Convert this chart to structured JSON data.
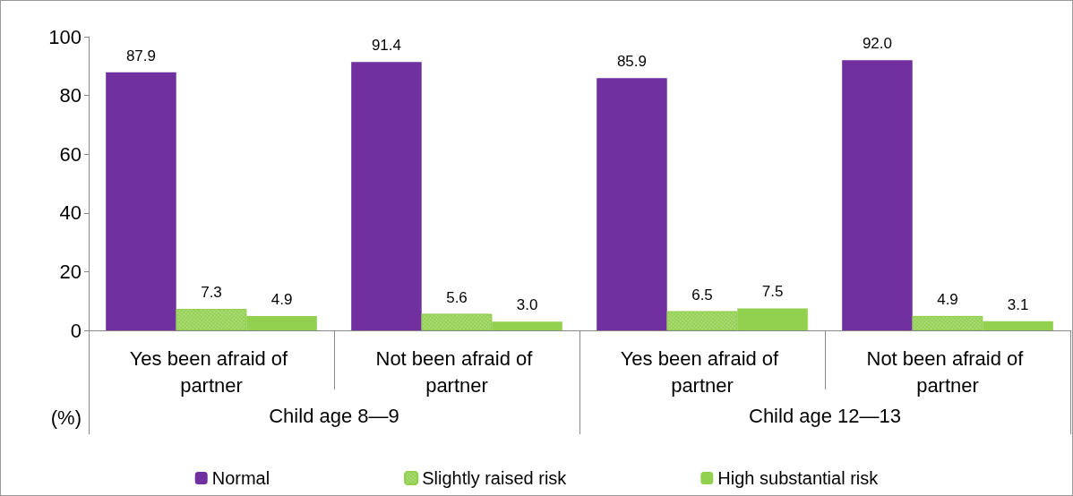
{
  "chart_data": {
    "type": "bar",
    "ylabel": "(%)",
    "categories": [
      "Yes been afraid of partner",
      "Not been afraid of partner",
      "Yes been afraid of partner",
      "Not been afraid of partner"
    ],
    "series": [
      {
        "name": "Normal",
        "color": "#7030a0",
        "values": [
          87.9,
          91.4,
          85.9,
          92.0
        ]
      },
      {
        "name": "Slightly raised risk",
        "color": "#92d050",
        "values": [
          7.3,
          5.6,
          6.5,
          4.9
        ]
      },
      {
        "name": "High substantial risk",
        "color": "#92d050",
        "values": [
          4.9,
          3.0,
          7.5,
          3.1
        ]
      }
    ],
    "value_labels": [
      [
        "87.9",
        "91.4",
        "85.9",
        "92.0"
      ],
      [
        "7.3",
        "5.6",
        "6.5",
        "4.9"
      ],
      [
        "4.9",
        "3.0",
        "7.5",
        "3.1"
      ]
    ],
    "annotations": [
      "Child age 8—9",
      "Child age 12—13"
    ],
    "ylim": [
      0,
      100
    ],
    "yticks": [
      0,
      20,
      40,
      60,
      80,
      100
    ],
    "grid": false,
    "legend": "bottom"
  }
}
